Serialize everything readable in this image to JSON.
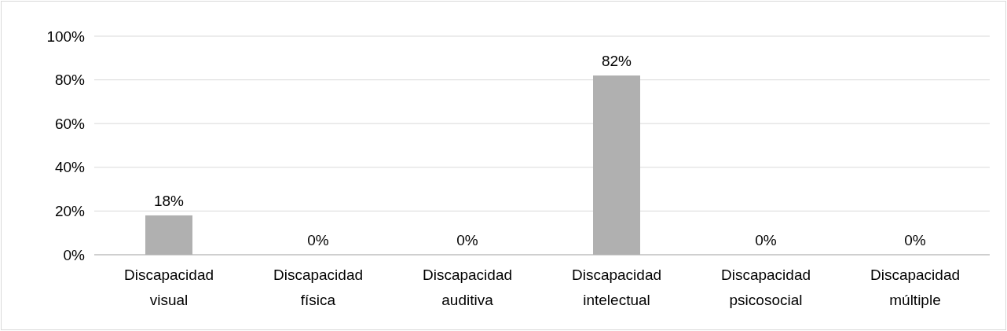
{
  "chart_data": {
    "type": "bar",
    "categories": [
      "Discapacidad visual",
      "Discapacidad física",
      "Discapacidad auditiva",
      "Discapacidad intelectual",
      "Discapacidad psicosocial",
      "Discapacidad múltiple"
    ],
    "values": [
      18,
      0,
      0,
      82,
      0,
      0
    ],
    "value_labels": [
      "18%",
      "0%",
      "0%",
      "82%",
      "0%",
      "0%"
    ],
    "color": "#b0b0b0",
    "ylim": [
      0,
      100
    ],
    "yticks": [
      {
        "value": 0,
        "label": "0%"
      },
      {
        "value": 20,
        "label": "20%"
      },
      {
        "value": 40,
        "label": "40%"
      },
      {
        "value": 60,
        "label": "60%"
      },
      {
        "value": 80,
        "label": "80%"
      },
      {
        "value": 100,
        "label": "100%"
      }
    ],
    "grid": "y"
  }
}
